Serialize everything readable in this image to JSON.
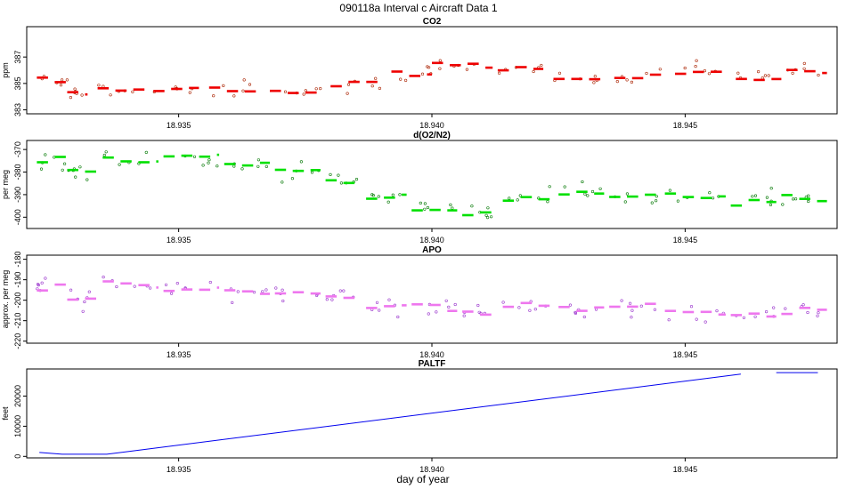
{
  "figure": {
    "title": "090118a   Interval c Aircraft Data 1",
    "xlabel": "day of year"
  },
  "chart_data": [
    {
      "type": "scatter",
      "title": "CO2",
      "ylabel": "ppm",
      "xlim": [
        18.932,
        18.948
      ],
      "ylim": [
        382.7,
        389.3
      ],
      "xticks": [
        18.935,
        18.94,
        18.945
      ],
      "xtick_labels": [
        "18.935",
        "18.940",
        "18.945"
      ],
      "yticks": [
        383,
        385,
        387
      ],
      "ytick_labels": [
        "383",
        "385",
        "387"
      ],
      "color": "#ee0000",
      "raw_color": "#aa2200",
      "segments": [
        {
          "x": [
            18.9322,
            18.9328
          ],
          "y": 385.4
        },
        {
          "x": [
            18.9328,
            18.9332
          ],
          "y": 384.2
        },
        {
          "x": [
            18.9334,
            18.9344
          ],
          "y": 384.5
        },
        {
          "x": [
            18.9345,
            18.9354
          ],
          "y": 384.7
        },
        {
          "x": [
            18.9356,
            18.9366
          ],
          "y": 384.6
        },
        {
          "x": [
            18.9368,
            18.9378
          ],
          "y": 384.4
        },
        {
          "x": [
            18.938,
            18.939
          ],
          "y": 384.9
        },
        {
          "x": [
            18.9392,
            18.94
          ],
          "y": 385.8
        },
        {
          "x": [
            18.94,
            18.9412
          ],
          "y": 386.5
        },
        {
          "x": [
            18.9413,
            18.9422
          ],
          "y": 386.1
        },
        {
          "x": [
            18.9424,
            18.9434
          ],
          "y": 385.3
        },
        {
          "x": [
            18.9436,
            18.9446
          ],
          "y": 385.5
        },
        {
          "x": [
            18.9448,
            18.9458
          ],
          "y": 385.9
        },
        {
          "x": [
            18.946,
            18.9469
          ],
          "y": 385.4
        },
        {
          "x": [
            18.947,
            18.9478
          ],
          "y": 385.8
        }
      ]
    },
    {
      "type": "scatter",
      "title": "d(O2/N2)",
      "ylabel": "per meg",
      "xlim": [
        18.932,
        18.948
      ],
      "ylim": [
        -405,
        -366
      ],
      "xticks": [
        18.935,
        18.94,
        18.945
      ],
      "xtick_labels": [
        "18.935",
        "18.940",
        "18.945"
      ],
      "yticks": [
        -400,
        -390,
        -380,
        -370
      ],
      "ytick_labels": [
        "-400",
        "-390",
        "-380",
        "-370"
      ],
      "color": "#00e000",
      "raw_color": "#007700",
      "segments": [
        {
          "x": [
            18.9322,
            18.9328
          ],
          "y": -375
        },
        {
          "x": [
            18.9328,
            18.9334
          ],
          "y": -380
        },
        {
          "x": [
            18.9335,
            18.9346
          ],
          "y": -374
        },
        {
          "x": [
            18.9347,
            18.9358
          ],
          "y": -374
        },
        {
          "x": [
            18.9359,
            18.9368
          ],
          "y": -377
        },
        {
          "x": [
            18.9369,
            18.9378
          ],
          "y": -380
        },
        {
          "x": [
            18.9379,
            18.9386
          ],
          "y": -384
        },
        {
          "x": [
            18.9387,
            18.9395
          ],
          "y": -391
        },
        {
          "x": [
            18.9396,
            18.9405
          ],
          "y": -396
        },
        {
          "x": [
            18.9406,
            18.9413
          ],
          "y": -398
        },
        {
          "x": [
            18.9414,
            18.9424
          ],
          "y": -392
        },
        {
          "x": [
            18.9425,
            18.9434
          ],
          "y": -388
        },
        {
          "x": [
            18.9435,
            18.9445
          ],
          "y": -391
        },
        {
          "x": [
            18.9446,
            18.9458
          ],
          "y": -391
        },
        {
          "x": [
            18.9459,
            18.9468
          ],
          "y": -393
        },
        {
          "x": [
            18.9469,
            18.9478
          ],
          "y": -391
        }
      ]
    },
    {
      "type": "scatter",
      "title": "APO",
      "ylabel": "approx. per meg",
      "xlim": [
        18.932,
        18.948
      ],
      "ylim": [
        -221,
        -178
      ],
      "xticks": [
        18.935,
        18.94,
        18.945
      ],
      "xtick_labels": [
        "18.935",
        "18.940",
        "18.945"
      ],
      "yticks": [
        -220,
        -210,
        -200,
        -190,
        -180
      ],
      "ytick_labels": [
        "-220",
        "-210",
        "-200",
        "-190",
        "-180"
      ],
      "color": "#ee77ee",
      "raw_color": "#9933cc",
      "segments": [
        {
          "x": [
            18.9322,
            18.9328
          ],
          "y": -193
        },
        {
          "x": [
            18.9328,
            18.9334
          ],
          "y": -200
        },
        {
          "x": [
            18.9335,
            18.9346
          ],
          "y": -193
        },
        {
          "x": [
            18.9347,
            18.9358
          ],
          "y": -194
        },
        {
          "x": [
            18.9359,
            18.9368
          ],
          "y": -196
        },
        {
          "x": [
            18.9369,
            18.9378
          ],
          "y": -196
        },
        {
          "x": [
            18.9379,
            18.9386
          ],
          "y": -199
        },
        {
          "x": [
            18.9387,
            18.9395
          ],
          "y": -203
        },
        {
          "x": [
            18.9396,
            18.9405
          ],
          "y": -204
        },
        {
          "x": [
            18.9406,
            18.9413
          ],
          "y": -205
        },
        {
          "x": [
            18.9414,
            18.9424
          ],
          "y": -203
        },
        {
          "x": [
            18.9425,
            18.9434
          ],
          "y": -205
        },
        {
          "x": [
            18.9435,
            18.9445
          ],
          "y": -204
        },
        {
          "x": [
            18.9446,
            18.9458
          ],
          "y": -206
        },
        {
          "x": [
            18.9459,
            18.9468
          ],
          "y": -207
        },
        {
          "x": [
            18.9469,
            18.9478
          ],
          "y": -205
        }
      ]
    },
    {
      "type": "line",
      "title": "PALTF",
      "ylabel": "feet",
      "xlim": [
        18.932,
        18.948
      ],
      "ylim": [
        -500,
        29000
      ],
      "xticks": [
        18.935,
        18.94,
        18.945
      ],
      "xtick_labels": [
        "18.935",
        "18.940",
        "18.945"
      ],
      "yticks": [
        0,
        10000,
        20000
      ],
      "ytick_labels": [
        "0",
        "10000",
        "20000"
      ],
      "color": "#0000ee",
      "lines": [
        [
          [
            18.93225,
            1300
          ],
          [
            18.9327,
            700
          ],
          [
            18.93358,
            700
          ],
          [
            18.9461,
            27300
          ]
        ],
        [
          [
            18.9468,
            27800
          ],
          [
            18.94762,
            27800
          ]
        ]
      ]
    }
  ]
}
